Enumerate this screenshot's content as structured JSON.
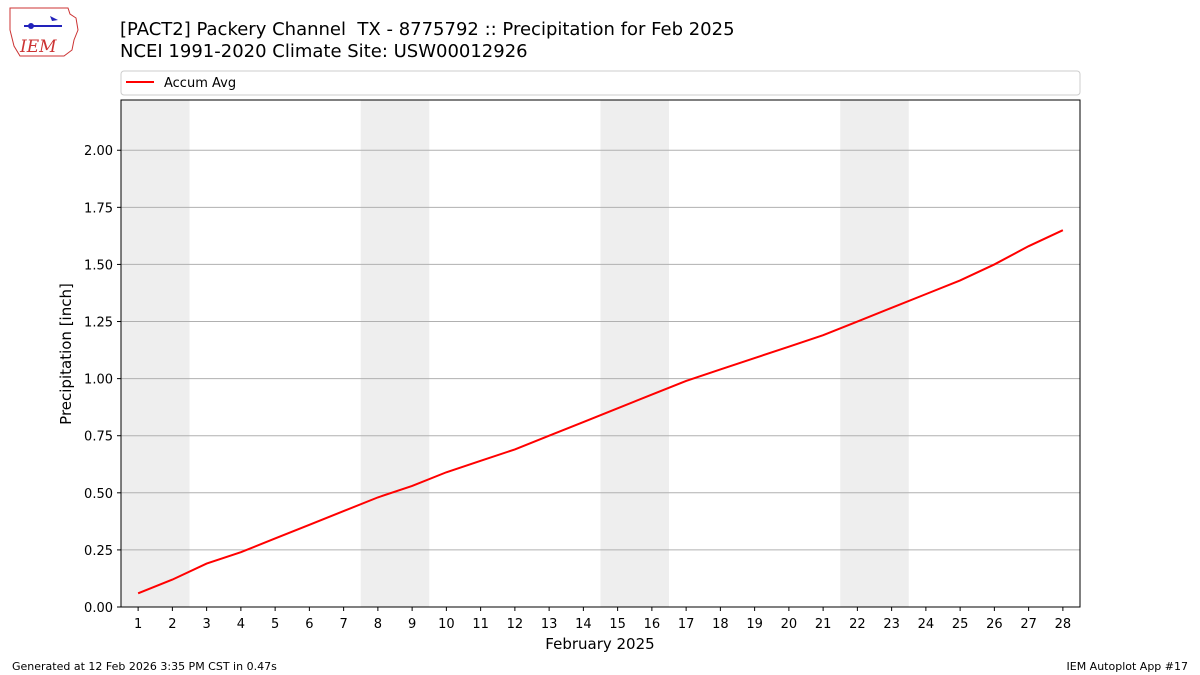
{
  "chart_data": {
    "type": "line",
    "title": "[PACT2] Packery Channel  TX - 8775792 :: Precipitation for Feb 2025",
    "subtitle": "NCEI 1991-2020 Climate Site: USW00012926",
    "x_label": "February 2025",
    "y_label": "Precipitation [inch]",
    "logo_text": "IEM",
    "footer_left": "Generated at 12 Feb 2026 3:35 PM CST in 0.47s",
    "footer_right": "IEM Autoplot App #17",
    "legend": "upper center",
    "grid": true,
    "x": [
      1,
      2,
      3,
      4,
      5,
      6,
      7,
      8,
      9,
      10,
      11,
      12,
      13,
      14,
      15,
      16,
      17,
      18,
      19,
      20,
      21,
      22,
      23,
      24,
      25,
      26,
      27,
      28
    ],
    "series": [
      {
        "name": "Accum Avg",
        "color": "#ff0000",
        "values": [
          0.06,
          0.12,
          0.19,
          0.24,
          0.3,
          0.36,
          0.42,
          0.48,
          0.53,
          0.59,
          0.64,
          0.69,
          0.75,
          0.81,
          0.87,
          0.93,
          0.99,
          1.04,
          1.09,
          1.14,
          1.19,
          1.25,
          1.31,
          1.37,
          1.43,
          1.5,
          1.58,
          1.65
        ]
      }
    ],
    "weekend_spans": [
      [
        0.5,
        2.5
      ],
      [
        7.5,
        9.5
      ],
      [
        14.5,
        16.5
      ],
      [
        21.5,
        23.5
      ]
    ],
    "weekend_color": "#eeeeee",
    "xlim": [
      0.5,
      28.5
    ],
    "ylim": [
      0,
      2.22
    ],
    "xticks": [
      1,
      2,
      3,
      4,
      5,
      6,
      7,
      8,
      9,
      10,
      11,
      12,
      13,
      14,
      15,
      16,
      17,
      18,
      19,
      20,
      21,
      22,
      23,
      24,
      25,
      26,
      27,
      28
    ],
    "yticks": [
      {
        "value": 0,
        "label": "0.00"
      },
      {
        "value": 0.25,
        "label": "0.25"
      },
      {
        "value": 0.5,
        "label": "0.50"
      },
      {
        "value": 0.75,
        "label": "0.75"
      },
      {
        "value": 1,
        "label": "1.00"
      },
      {
        "value": 1.25,
        "label": "1.25"
      },
      {
        "value": 1.5,
        "label": "1.50"
      },
      {
        "value": 1.75,
        "label": "1.75"
      },
      {
        "value": 2,
        "label": "2.00"
      }
    ]
  }
}
